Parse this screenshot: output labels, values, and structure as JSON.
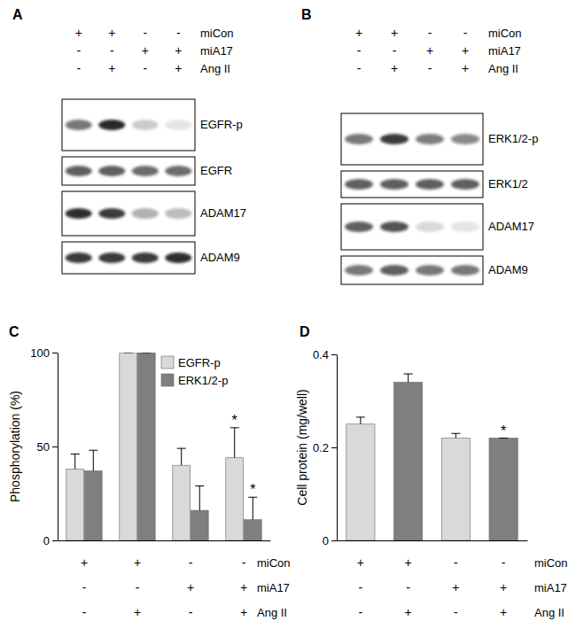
{
  "blots": [
    {
      "panel": "A",
      "conditions": [
        {
          "label": "miCon",
          "signs": [
            "+",
            "+",
            "-",
            "-"
          ]
        },
        {
          "label": "miA17",
          "signs": [
            "-",
            "-",
            "+",
            "+"
          ]
        },
        {
          "label": "Ang II",
          "signs": [
            "-",
            "+",
            "-",
            "+"
          ]
        }
      ],
      "rows": [
        {
          "label": "EGFR-p",
          "intensity": [
            0.6,
            0.95,
            0.2,
            0.1
          ]
        },
        {
          "label": "EGFR",
          "intensity": [
            0.7,
            0.7,
            0.65,
            0.65
          ]
        },
        {
          "label": "ADAM17",
          "intensity": [
            0.9,
            0.85,
            0.35,
            0.3
          ]
        },
        {
          "label": "ADAM9",
          "intensity": [
            0.85,
            0.85,
            0.85,
            0.9
          ]
        }
      ]
    },
    {
      "panel": "B",
      "conditions": [
        {
          "label": "miCon",
          "signs": [
            "+",
            "+",
            "-",
            "-"
          ]
        },
        {
          "label": "miA17",
          "signs": [
            "-",
            "-",
            "+",
            "+"
          ]
        },
        {
          "label": "Ang II",
          "signs": [
            "-",
            "+",
            "-",
            "+"
          ]
        }
      ],
      "rows": [
        {
          "label": "ERK1/2-p",
          "intensity": [
            0.6,
            0.85,
            0.55,
            0.5
          ]
        },
        {
          "label": "ERK1/2",
          "intensity": [
            0.7,
            0.7,
            0.7,
            0.7
          ]
        },
        {
          "label": "ADAM17",
          "intensity": [
            0.7,
            0.75,
            0.15,
            0.1
          ]
        },
        {
          "label": "ADAM9",
          "intensity": [
            0.6,
            0.7,
            0.6,
            0.6
          ]
        }
      ]
    }
  ],
  "chart_data": [
    {
      "panel": "C",
      "type": "bar",
      "ylabel": "Phosphorylation (%)",
      "categories": [
        null,
        null,
        null,
        null
      ],
      "series": [
        {
          "name": "EGFR-p",
          "color": "#d9d9d9",
          "values": [
            38,
            100,
            40,
            44
          ],
          "errors": [
            8,
            0,
            9,
            16
          ],
          "significance": [
            null,
            null,
            null,
            "*"
          ]
        },
        {
          "name": "ERK1/2-p",
          "color": "#7f7f7f",
          "values": [
            37,
            100,
            16,
            11
          ],
          "errors": [
            11,
            0,
            13,
            12
          ],
          "significance": [
            null,
            null,
            null,
            "*"
          ]
        }
      ],
      "ylim": [
        0,
        100
      ],
      "yticks": [
        0,
        50,
        100
      ],
      "legend": "top",
      "conditions": [
        {
          "label": "miCon",
          "signs": [
            "+",
            "+",
            "-",
            "-"
          ]
        },
        {
          "label": "miA17",
          "signs": [
            "-",
            "-",
            "+",
            "+"
          ]
        },
        {
          "label": "Ang II",
          "signs": [
            "-",
            "+",
            "-",
            "+"
          ]
        }
      ]
    },
    {
      "panel": "D",
      "type": "bar",
      "ylabel": "Cell protein (mg/well)",
      "categories": [
        null,
        null,
        null,
        null
      ],
      "values": [
        0.25,
        0.34,
        0.22,
        0.22
      ],
      "errors": [
        0.015,
        0.018,
        0.01,
        0
      ],
      "colors": [
        "#d9d9d9",
        "#7f7f7f",
        "#d9d9d9",
        "#7f7f7f"
      ],
      "significance": [
        null,
        null,
        null,
        "*"
      ],
      "ylim": [
        0,
        0.4
      ],
      "yticks": [
        0,
        0.2,
        0.4
      ],
      "conditions": [
        {
          "label": "miCon",
          "signs": [
            "+",
            "+",
            "-",
            "-"
          ]
        },
        {
          "label": "miA17",
          "signs": [
            "-",
            "-",
            "+",
            "+"
          ]
        },
        {
          "label": "Ang II",
          "signs": [
            "-",
            "+",
            "-",
            "+"
          ]
        }
      ]
    }
  ]
}
